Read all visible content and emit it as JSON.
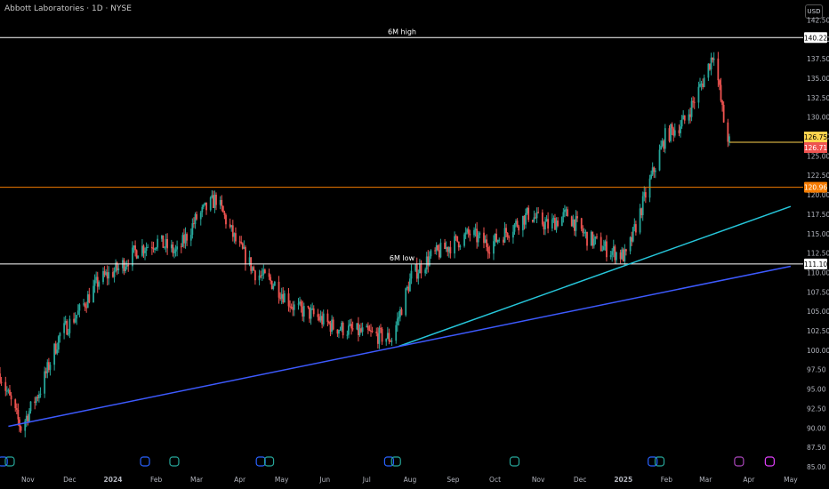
{
  "header": {
    "title": "Abbott Laboratories · 1D · NYSE",
    "currency_button": "USD"
  },
  "colors": {
    "up": "#26a69a",
    "down": "#ef5350",
    "resistance": "#f57c00",
    "support_line": "#ffffff",
    "trend_teal": "#26c6da",
    "trend_blue": "#3d5afe",
    "last_price_yellow": "#ffd54f",
    "last_price_red": "#ef5350"
  },
  "chart_data": {
    "type": "candlestick",
    "title": "Abbott Laboratories · 1D · NYSE",
    "ylim": [
      85.0,
      143.0
    ],
    "y_ticks": [
      "142.50",
      "140.00",
      "137.50",
      "135.00",
      "132.50",
      "130.00",
      "127.50",
      "125.00",
      "122.50",
      "120.00",
      "117.50",
      "115.00",
      "112.50",
      "110.00",
      "107.50",
      "105.00",
      "102.50",
      "100.00",
      "97.50",
      "95.00",
      "92.50",
      "90.00",
      "87.50",
      "85.00"
    ],
    "x_ticks": [
      "Nov",
      "Dec",
      "2024",
      "Feb",
      "Mar",
      "Apr",
      "May",
      "Jun",
      "Jul",
      "Aug",
      "Sep",
      "Oct",
      "Nov",
      "Dec",
      "2025",
      "Feb",
      "Mar",
      "Apr",
      "May"
    ],
    "series": [
      {
        "name": "price_path",
        "values": [
          [
            "2023-10-12",
            97.0
          ],
          [
            "2023-10-27",
            90.0
          ],
          [
            "2023-11-10",
            95.0
          ],
          [
            "2023-11-24",
            102.0
          ],
          [
            "2023-12-08",
            105.0
          ],
          [
            "2023-12-22",
            109.0
          ],
          [
            "2024-01-05",
            110.5
          ],
          [
            "2024-01-19",
            113.0
          ],
          [
            "2024-02-02",
            114.0
          ],
          [
            "2024-02-16",
            112.5
          ],
          [
            "2024-03-01",
            117.0
          ],
          [
            "2024-03-15",
            119.5
          ],
          [
            "2024-03-29",
            114.0
          ],
          [
            "2024-04-12",
            110.0
          ],
          [
            "2024-04-26",
            108.5
          ],
          [
            "2024-05-10",
            105.5
          ],
          [
            "2024-05-24",
            104.5
          ],
          [
            "2024-06-07",
            103.0
          ],
          [
            "2024-06-21",
            102.5
          ],
          [
            "2024-07-05",
            102.0
          ],
          [
            "2024-07-19",
            101.5
          ],
          [
            "2024-08-02",
            109.5
          ],
          [
            "2024-08-16",
            112.0
          ],
          [
            "2024-08-30",
            113.5
          ],
          [
            "2024-09-13",
            115.0
          ],
          [
            "2024-09-27",
            113.5
          ],
          [
            "2024-10-11",
            115.5
          ],
          [
            "2024-10-25",
            117.5
          ],
          [
            "2024-11-08",
            116.0
          ],
          [
            "2024-11-22",
            117.5
          ],
          [
            "2024-12-06",
            114.5
          ],
          [
            "2024-12-20",
            113.0
          ],
          [
            "2025-01-03",
            112.0
          ],
          [
            "2025-01-17",
            120.0
          ],
          [
            "2025-01-31",
            127.5
          ],
          [
            "2025-02-14",
            129.5
          ],
          [
            "2025-02-28",
            135.0
          ],
          [
            "2025-03-07",
            138.5
          ],
          [
            "2025-03-14",
            129.5
          ],
          [
            "2025-03-18",
            126.71
          ]
        ]
      }
    ],
    "horizontal_levels": [
      {
        "label": "6M high",
        "value": 140.22,
        "badge": "140.22"
      },
      {
        "label": "",
        "value": 120.96,
        "badge": "120.96"
      },
      {
        "label": "6M low",
        "value": 111.1,
        "badge": "111.10"
      }
    ],
    "price_badges": {
      "current_yellow": "126.75",
      "current_red": "126.71"
    },
    "trendlines": [
      {
        "name": "teal",
        "from": [
          "2024-07-24",
          100.5
        ],
        "to": [
          "2025-05-01",
          118.5
        ]
      },
      {
        "name": "blue",
        "from": [
          "2023-10-18",
          90.2
        ],
        "to": [
          "2025-05-01",
          110.8
        ]
      }
    ],
    "grid": false,
    "legend": "none"
  }
}
